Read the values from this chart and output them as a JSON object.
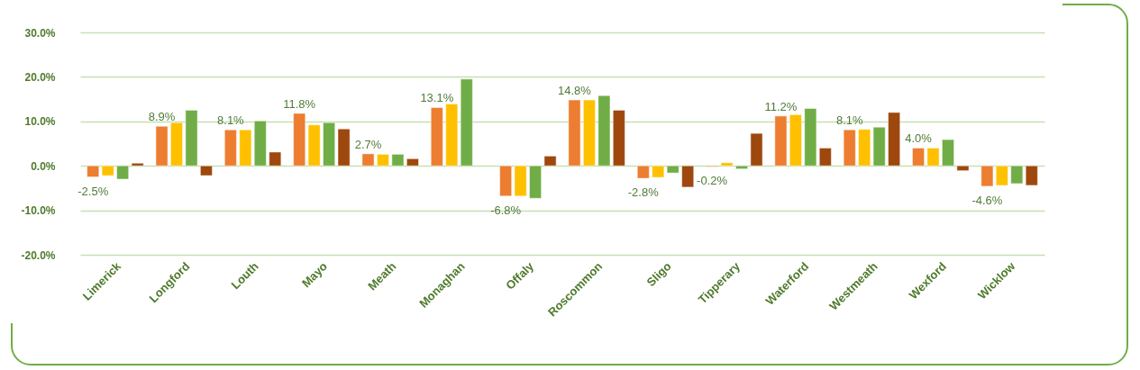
{
  "chart_data": {
    "type": "bar",
    "categories": [
      "Limerick",
      "Longford",
      "Louth",
      "Mayo",
      "Meath",
      "Monaghan",
      "Offaly",
      "Roscommon",
      "Sligo",
      "Tipperary",
      "Waterford",
      "Westmeath",
      "Wexford",
      "Wicklow"
    ],
    "series": [
      {
        "color": "#ed7d31",
        "values": [
          -2.5,
          8.9,
          8.1,
          11.8,
          2.7,
          13.1,
          -6.8,
          14.8,
          -2.8,
          -0.2,
          11.2,
          8.1,
          4.0,
          -4.6
        ],
        "value_labels": [
          "-2.5%",
          "8.9%",
          "8.1%",
          "11.8%",
          "2.7%",
          "13.1%",
          "-6.8%",
          "14.8%",
          "-2.8%",
          "-0.2%",
          "11.2%",
          "8.1%",
          "4.0%",
          "-4.6%"
        ]
      },
      {
        "color": "#ffc000",
        "values": [
          -2.2,
          9.7,
          8.1,
          9.2,
          2.6,
          13.9,
          -6.8,
          14.8,
          -2.6,
          0.7,
          11.5,
          8.2,
          4.0,
          -4.4
        ]
      },
      {
        "color": "#70ad47",
        "values": [
          -3.0,
          12.5,
          10.1,
          9.7,
          2.6,
          19.5,
          -7.3,
          15.8,
          -1.6,
          -0.7,
          12.9,
          8.7,
          5.9,
          -4.0
        ]
      },
      {
        "color": "#9e480e",
        "values": [
          0.6,
          -2.2,
          3.1,
          8.3,
          1.6,
          null,
          2.2,
          12.5,
          -4.8,
          7.3,
          4.0,
          12.0,
          -1.1,
          -4.4
        ]
      }
    ],
    "ylim": [
      -20,
      30
    ],
    "yticks": [
      {
        "value": -20,
        "label": "-20.0%"
      },
      {
        "value": -10,
        "label": "-10.0%"
      },
      {
        "value": 0,
        "label": "0.0%"
      },
      {
        "value": 10,
        "label": "10.0%"
      },
      {
        "value": 20,
        "label": "20.0%"
      },
      {
        "value": 30,
        "label": "30.0%"
      }
    ],
    "grid": "y"
  }
}
